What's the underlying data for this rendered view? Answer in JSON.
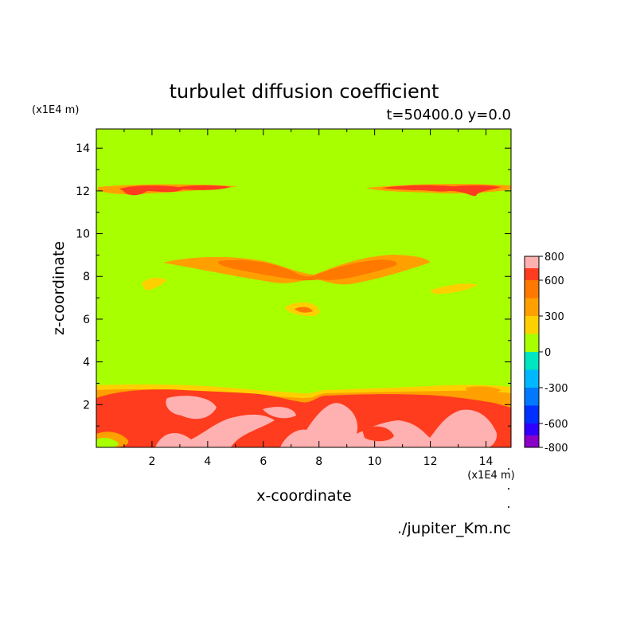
{
  "chart_data": {
    "type": "heatmap",
    "title": "turbulet diffusion coefficient",
    "subtitle": "t=50400.0 y=0.0",
    "xlabel": "x-coordinate",
    "ylabel": "z-coordinate",
    "x_unit": "(x1E4 m)",
    "y_unit": "(x1E4 m)",
    "xlim": [
      0,
      14.9
    ],
    "ylim": [
      0,
      14.9
    ],
    "x_ticks": [
      2,
      4,
      6,
      8,
      10,
      12,
      14
    ],
    "y_ticks": [
      2,
      4,
      6,
      8,
      10,
      12,
      14
    ],
    "grid": false,
    "background_level": "0 to 150",
    "colorbar": {
      "tick_labels": [
        "800",
        "600",
        "300",
        "0",
        "-300",
        "-600",
        "-800"
      ],
      "tick_values": [
        800,
        600,
        300,
        0,
        -300,
        -600,
        -800
      ],
      "levels": [
        {
          "range": [
            -800,
            -700
          ],
          "color": "#8a00c8"
        },
        {
          "range": [
            -700,
            -600
          ],
          "color": "#3000ff"
        },
        {
          "range": [
            -600,
            -450
          ],
          "color": "#0030ff"
        },
        {
          "range": [
            -450,
            -300
          ],
          "color": "#0078ff"
        },
        {
          "range": [
            -300,
            -150
          ],
          "color": "#00b8ff"
        },
        {
          "range": [
            -150,
            0
          ],
          "color": "#00e6c0"
        },
        {
          "range": [
            0,
            150
          ],
          "color": "#a8ff00"
        },
        {
          "range": [
            150,
            300
          ],
          "color": "#ffd000"
        },
        {
          "range": [
            300,
            450
          ],
          "color": "#ffa000"
        },
        {
          "range": [
            450,
            600
          ],
          "color": "#ff7800"
        },
        {
          "range": [
            600,
            700
          ],
          "color": "#ff3c1e"
        },
        {
          "range": [
            700,
            800
          ],
          "color": "#ffb0b0"
        }
      ]
    }
  },
  "footer": {
    "source_file": "./jupiter_Km.nc"
  }
}
